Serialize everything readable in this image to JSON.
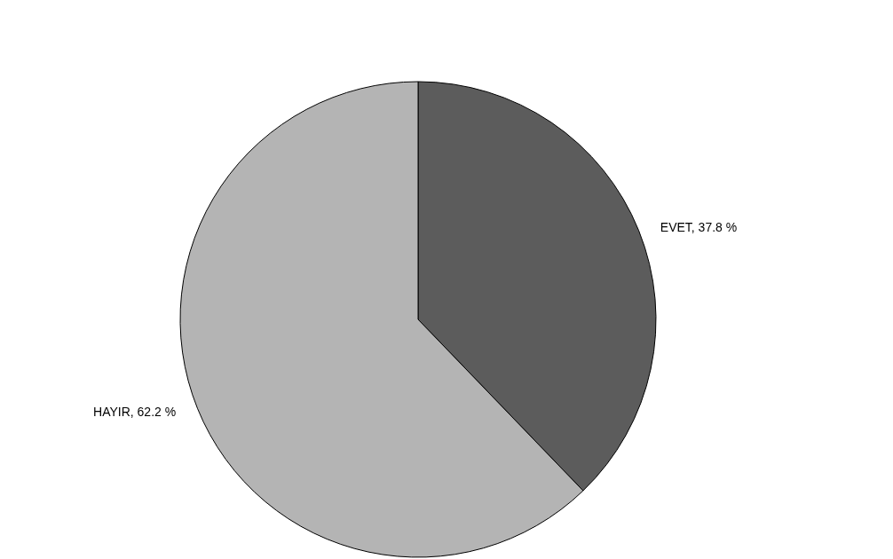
{
  "chart_data": {
    "type": "pie",
    "categories": [
      "EVET",
      "HAYIR"
    ],
    "values": [
      37.8,
      62.2
    ],
    "colors": [
      "#5c5c5c",
      "#b4b4b4"
    ],
    "value_labels": [
      "37.8 %",
      "62.2 %"
    ],
    "legend": false
  }
}
